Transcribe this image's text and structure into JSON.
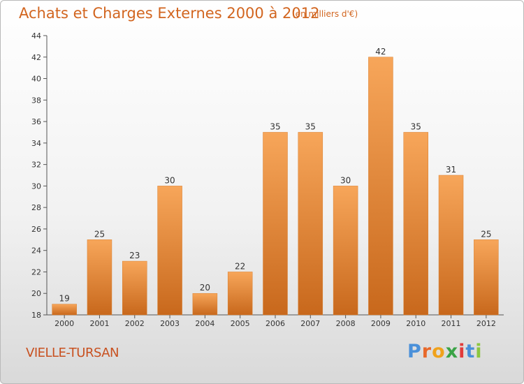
{
  "header": {
    "title": "Achats et Charges Externes 2000 à 2012",
    "subtitle": "(en milliers d'€)"
  },
  "footer": {
    "place": "VIELLE-TURSAN",
    "logo": "Proxiti"
  },
  "colors": {
    "bar_light": "#f7a65a",
    "bar_dark": "#c8681c",
    "title": "#d2651f",
    "logo_letters": [
      "#4a90d9",
      "#e8682a",
      "#f0a21c",
      "#3aa346",
      "#e23b3b",
      "#4a90d9",
      "#8cc63f"
    ]
  },
  "chart_data": {
    "type": "bar",
    "title": "Achats et Charges Externes 2000 à 2012",
    "subtitle": "(en milliers d'€)",
    "categories": [
      "2000",
      "2001",
      "2002",
      "2003",
      "2004",
      "2005",
      "2006",
      "2007",
      "2008",
      "2009",
      "2010",
      "2011",
      "2012"
    ],
    "values": [
      19,
      25,
      23,
      30,
      20,
      22,
      35,
      35,
      30,
      42,
      35,
      31,
      25
    ],
    "ylim": [
      18,
      44
    ],
    "yticks": [
      18,
      20,
      22,
      24,
      26,
      28,
      30,
      32,
      34,
      36,
      38,
      40,
      42,
      44
    ],
    "grid": false,
    "xlabel": "",
    "ylabel": ""
  }
}
